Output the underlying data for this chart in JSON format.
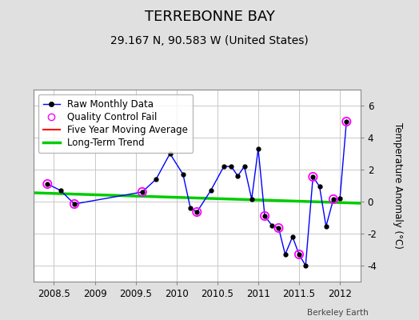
{
  "title": "TERREBONNE BAY",
  "subtitle": "29.167 N, 90.583 W (United States)",
  "attribution": "Berkeley Earth",
  "ylabel": "Temperature Anomaly (°C)",
  "background_color": "#e0e0e0",
  "plot_bg_color": "#ffffff",
  "xlim": [
    2008.25,
    2012.25
  ],
  "ylim": [
    -5.0,
    7.0
  ],
  "yticks": [
    -4,
    -2,
    0,
    2,
    4,
    6
  ],
  "xticks": [
    2008.5,
    2009.0,
    2009.5,
    2010.0,
    2010.5,
    2011.0,
    2011.5,
    2012.0
  ],
  "xticklabels": [
    "2008.5",
    "2009",
    "2009.5",
    "2010",
    "2010.5",
    "2011",
    "2011.5",
    "2012"
  ],
  "raw_x": [
    2008.42,
    2008.58,
    2008.75,
    2009.58,
    2009.75,
    2009.92,
    2010.08,
    2010.17,
    2010.25,
    2010.42,
    2010.58,
    2010.67,
    2010.75,
    2010.83,
    2010.92,
    2011.0,
    2011.08,
    2011.17,
    2011.25,
    2011.33,
    2011.42,
    2011.5,
    2011.58,
    2011.67,
    2011.75,
    2011.83,
    2011.92,
    2012.0,
    2012.08
  ],
  "raw_y": [
    1.1,
    0.7,
    -0.15,
    0.6,
    1.4,
    3.0,
    1.7,
    -0.4,
    -0.65,
    0.7,
    2.2,
    2.2,
    1.6,
    2.2,
    0.15,
    3.3,
    -0.9,
    -1.5,
    -1.65,
    -3.3,
    -2.2,
    -3.3,
    -4.0,
    1.55,
    0.95,
    -1.55,
    0.15,
    0.2,
    5.0
  ],
  "qc_fail_x": [
    2008.42,
    2008.75,
    2009.58,
    2010.25,
    2011.08,
    2011.25,
    2011.5,
    2011.67,
    2011.92,
    2012.08
  ],
  "qc_fail_y": [
    1.1,
    -0.15,
    0.6,
    -0.65,
    -0.9,
    -1.65,
    -3.3,
    1.55,
    0.15,
    5.0
  ],
  "trend_x": [
    2008.25,
    2012.25
  ],
  "trend_y": [
    0.55,
    -0.1
  ],
  "raw_line_color": "#0000ff",
  "raw_marker_color": "#000000",
  "qc_marker_color": "#ff00ff",
  "trend_color": "#00cc00",
  "ma_color": "#ff0000",
  "legend_fontsize": 8.5,
  "title_fontsize": 13,
  "subtitle_fontsize": 10,
  "tick_fontsize": 8.5
}
